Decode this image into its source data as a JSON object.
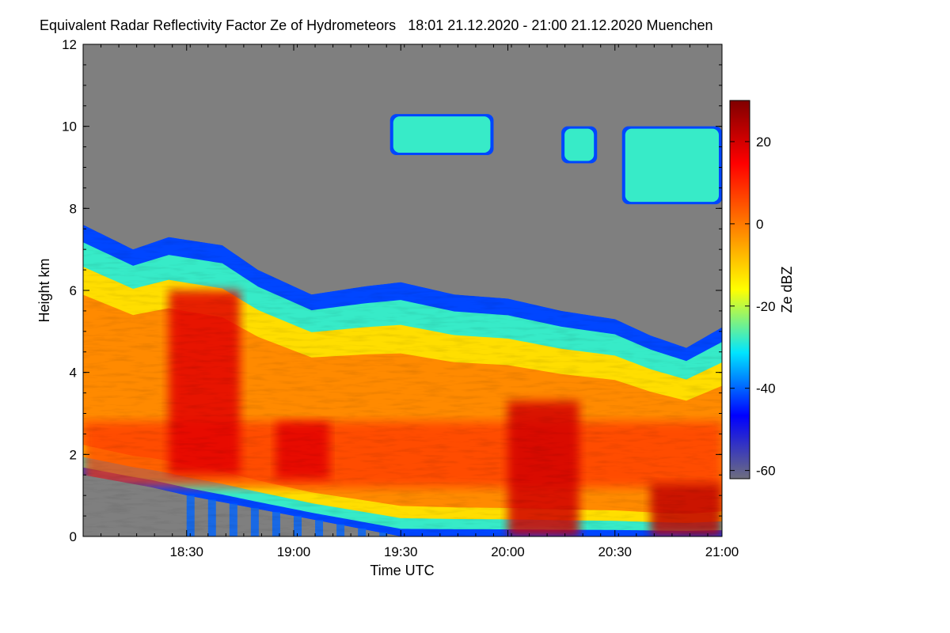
{
  "chart_data": {
    "type": "heatmap",
    "title": "Equivalent Radar Reflectivity Factor Ze of Hydrometeors",
    "time_range_label": "18:01 21.12.2020 - 21:00 21.12.2020",
    "location": "Muenchen",
    "xlabel": "Time UTC",
    "ylabel": "Height km",
    "colorbar_label": "Ze dBZ",
    "xlim": [
      "18:01",
      "21:00"
    ],
    "ylim": [
      0,
      12
    ],
    "x_ticks": [
      "18:30",
      "19:00",
      "19:30",
      "20:00",
      "20:30",
      "21:00"
    ],
    "y_ticks": [
      0,
      2,
      4,
      6,
      8,
      10,
      12
    ],
    "colorbar_range": [
      -62,
      30
    ],
    "colorbar_ticks": [
      20,
      0,
      -20,
      -40,
      -60
    ],
    "colors": {
      "background": "#7f7f7f",
      "colormap": [
        "#6e6e7e",
        "#0000ff",
        "#00e5ff",
        "#ffff00",
        "#ff7f00",
        "#ff0000",
        "#800000"
      ]
    },
    "echo_top_km": [
      {
        "time": "18:01",
        "h": 7.6
      },
      {
        "time": "18:15",
        "h": 7.0
      },
      {
        "time": "18:25",
        "h": 7.3
      },
      {
        "time": "18:40",
        "h": 7.1
      },
      {
        "time": "18:50",
        "h": 6.5
      },
      {
        "time": "19:05",
        "h": 5.9
      },
      {
        "time": "19:20",
        "h": 6.1
      },
      {
        "time": "19:30",
        "h": 6.2
      },
      {
        "time": "19:45",
        "h": 5.9
      },
      {
        "time": "20:00",
        "h": 5.8
      },
      {
        "time": "20:15",
        "h": 5.5
      },
      {
        "time": "20:30",
        "h": 5.3
      },
      {
        "time": "20:40",
        "h": 4.9
      },
      {
        "time": "20:50",
        "h": 4.6
      },
      {
        "time": "21:00",
        "h": 5.1
      }
    ],
    "cloud_base_km": [
      {
        "time": "18:01",
        "h": 1.5
      },
      {
        "time": "18:20",
        "h": 1.2
      },
      {
        "time": "18:30",
        "h": 1.0
      },
      {
        "time": "19:00",
        "h": 0.5
      },
      {
        "time": "19:30",
        "h": 0.0
      },
      {
        "time": "21:00",
        "h": 0.0
      }
    ],
    "cirrus_layers": [
      {
        "start": "19:27",
        "end": "19:56",
        "bottom_km": 9.3,
        "top_km": 10.3
      },
      {
        "start": "20:15",
        "end": "20:25",
        "bottom_km": 9.1,
        "top_km": 10.0
      },
      {
        "start": "20:32",
        "end": "21:00",
        "bottom_km": 8.1,
        "top_km": 10.0
      }
    ],
    "max_reflectivity_cores": [
      {
        "start": "18:25",
        "end": "18:45",
        "bottom_km": 1.5,
        "top_km": 6.0,
        "dbz": 18
      },
      {
        "start": "18:55",
        "end": "19:10",
        "bottom_km": 1.4,
        "top_km": 2.8,
        "dbz": 18
      },
      {
        "start": "20:00",
        "end": "20:20",
        "bottom_km": 0.0,
        "top_km": 3.3,
        "dbz": 20
      },
      {
        "start": "20:40",
        "end": "21:00",
        "bottom_km": 0.0,
        "top_km": 1.3,
        "dbz": 22
      }
    ]
  }
}
